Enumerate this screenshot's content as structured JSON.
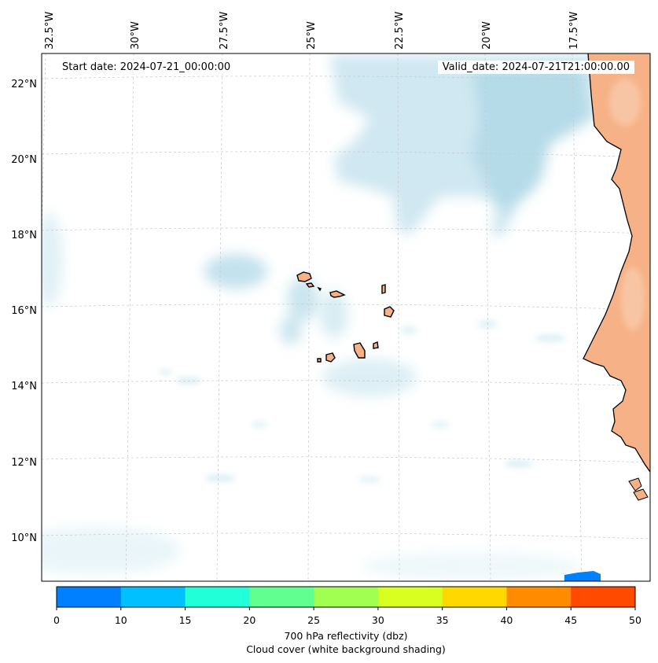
{
  "header": {
    "start_date": "Start date: 2024-07-21_00:00:00",
    "valid_date": "Valid_date: 2024-07-21T21:00:00.00"
  },
  "map": {
    "longitude_labels": [
      "32.5°W",
      "30°W",
      "27.5°W",
      "25°W",
      "22.5°W",
      "20°W",
      "17.5°W"
    ],
    "latitude_labels": [
      "22°N",
      "20°N",
      "18°N",
      "16°N",
      "14°N",
      "12°N",
      "10°N"
    ],
    "gridlines": true,
    "land_color": "#f6b286",
    "coastline_color": "#000000",
    "cloud_shading_color": "#a9d6e5"
  },
  "colorbar": {
    "ticks": [
      "0",
      "10",
      "15",
      "20",
      "25",
      "30",
      "35",
      "40",
      "45",
      "50"
    ],
    "colors": [
      "#0080ff",
      "#00c0ff",
      "#20ffd8",
      "#60ff90",
      "#a0ff50",
      "#d8ff20",
      "#ffd800",
      "#ff8c00",
      "#ff4a00"
    ],
    "label_line1": "700 hPa reflectivity (dbz)",
    "label_line2": "Cloud cover (white background shading)"
  }
}
